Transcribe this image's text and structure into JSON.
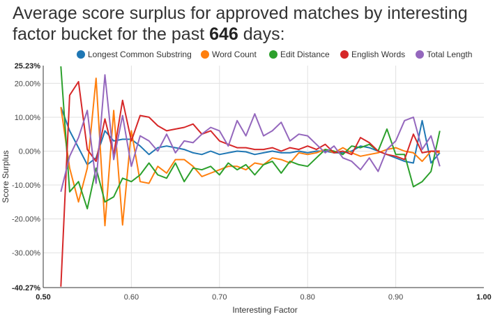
{
  "title_prefix": "Average score surplus for approved matches by interesting factor bucket for the past ",
  "title_days": "646",
  "title_suffix": " days:",
  "chart_data": {
    "type": "line",
    "xlabel": "Interesting Factor",
    "ylabel": "Score Surplus",
    "xlim": [
      0.5,
      1.0
    ],
    "ylim": [
      -40.27,
      25.23
    ],
    "x_ticks": [
      {
        "v": 0.5,
        "label": "0.50",
        "bold": true
      },
      {
        "v": 0.6,
        "label": "0.60",
        "bold": false
      },
      {
        "v": 0.7,
        "label": "0.70",
        "bold": false
      },
      {
        "v": 0.8,
        "label": "0.80",
        "bold": false
      },
      {
        "v": 0.9,
        "label": "0.90",
        "bold": false
      },
      {
        "v": 1.0,
        "label": "1.00",
        "bold": true
      }
    ],
    "y_ticks": [
      {
        "v": 25.23,
        "label": "25.23%",
        "bold": true
      },
      {
        "v": 20,
        "label": "20.00%",
        "bold": false
      },
      {
        "v": 10,
        "label": "10.00%",
        "bold": false
      },
      {
        "v": 0,
        "label": "0.00%",
        "bold": false
      },
      {
        "v": -10,
        "label": "-10.00%",
        "bold": false
      },
      {
        "v": -20,
        "label": "-20.00%",
        "bold": false
      },
      {
        "v": -30,
        "label": "-30.00%",
        "bold": false
      },
      {
        "v": -40.27,
        "label": "-40.27%",
        "bold": true
      }
    ],
    "x": [
      0.52,
      0.53,
      0.54,
      0.55,
      0.56,
      0.57,
      0.58,
      0.59,
      0.6,
      0.61,
      0.62,
      0.63,
      0.64,
      0.65,
      0.66,
      0.67,
      0.68,
      0.69,
      0.7,
      0.71,
      0.72,
      0.73,
      0.74,
      0.75,
      0.76,
      0.77,
      0.78,
      0.79,
      0.8,
      0.81,
      0.82,
      0.83,
      0.84,
      0.85,
      0.86,
      0.87,
      0.88,
      0.89,
      0.9,
      0.91,
      0.92,
      0.93,
      0.94,
      0.95
    ],
    "series": [
      {
        "name": "Longest Common Substring",
        "color": "#1f77b4",
        "values": [
          13,
          6,
          1,
          -4,
          -2,
          6,
          3,
          3.5,
          3.5,
          1.5,
          -1,
          1,
          1.5,
          1,
          0.5,
          -0.5,
          -1,
          0,
          -1,
          -0.5,
          0,
          -0.2,
          -1,
          -0.5,
          0,
          -0.5,
          -0.5,
          0,
          -0.5,
          0,
          0,
          -0.5,
          -0.5,
          0,
          1.5,
          1,
          0,
          -1,
          -2,
          -3,
          -3.5,
          9,
          -3.5,
          -0.5
        ]
      },
      {
        "name": "Word Count",
        "color": "#ff7f0e",
        "values": [
          13,
          -5,
          -15,
          -5,
          21.5,
          -22,
          12,
          -21.8,
          6,
          -9,
          -9.5,
          -4.5,
          -6.5,
          -2.5,
          -2.5,
          -4.5,
          -7.5,
          -6.5,
          -5.5,
          -4.5,
          -4.5,
          -5.5,
          -3.5,
          -4,
          -2,
          -2.5,
          -3.5,
          -0.5,
          -1,
          -0.5,
          0.5,
          -0.5,
          1,
          -0.5,
          -1.5,
          -1,
          -0.5,
          0.5,
          1,
          0,
          -0.5,
          -3,
          0,
          -0.5
        ]
      },
      {
        "name": "Edit Distance",
        "color": "#2ca02c",
        "values": [
          25,
          -12,
          -9,
          -17,
          -5,
          -15,
          -13.5,
          -8,
          -9,
          -7,
          -3.5,
          -7,
          -8,
          -3.5,
          -9,
          -5,
          -5.5,
          -4.5,
          -7,
          -3.5,
          -5.5,
          -4,
          -7,
          -4,
          -3,
          -6.5,
          -3,
          -4,
          -4.5,
          -2,
          0.5,
          0,
          -1,
          1.5,
          1,
          2,
          0,
          6.5,
          -1,
          -1,
          -10.5,
          -9,
          -6,
          6
        ]
      },
      {
        "name": "English Words",
        "color": "#d62728",
        "values": [
          -40,
          16.5,
          20.5,
          0.5,
          -3,
          9.5,
          -1,
          15,
          3,
          10.5,
          10,
          7.5,
          6,
          6.5,
          7,
          8,
          5,
          6,
          3,
          2,
          1,
          1,
          0.5,
          0.5,
          1,
          0,
          1,
          0.5,
          1.5,
          0.5,
          2,
          -0.5,
          0,
          -1,
          4,
          2.5,
          0,
          -1,
          -1.5,
          -2.5,
          5,
          -0.5,
          0,
          0
        ]
      },
      {
        "name": "Total Length",
        "color": "#9467bd",
        "values": [
          -12,
          -1.5,
          4,
          12,
          -9.5,
          22.5,
          -2.5,
          10.5,
          -4.5,
          4.5,
          3,
          0,
          5,
          -0.5,
          3,
          2.5,
          5,
          7,
          6,
          1.5,
          9,
          4.5,
          11,
          4.5,
          6,
          8.5,
          3,
          5,
          4.5,
          2,
          -0.5,
          1.5,
          -2,
          -3,
          -5.5,
          -2,
          -6,
          0.5,
          3,
          9,
          10,
          0.5,
          4.5,
          -4.5
        ]
      }
    ]
  }
}
